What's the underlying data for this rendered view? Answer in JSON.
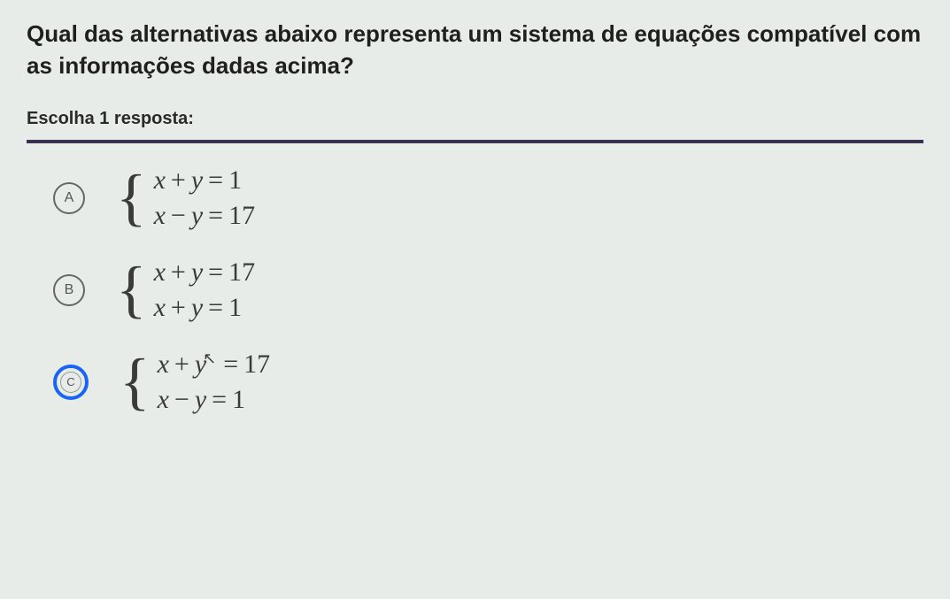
{
  "question_text": "Qual das alternativas abaixo representa um sistema de equações compatível com as informações dadas acima?",
  "instruction_text": "Escolha 1 resposta:",
  "options": [
    {
      "label": "A",
      "selected": false,
      "eq1_lhs_var1": "x",
      "eq1_op": "+",
      "eq1_lhs_var2": "y",
      "eq1_rhs": "1",
      "eq2_lhs_var1": "x",
      "eq2_op": "−",
      "eq2_lhs_var2": "y",
      "eq2_rhs": "17"
    },
    {
      "label": "B",
      "selected": false,
      "eq1_lhs_var1": "x",
      "eq1_op": "+",
      "eq1_lhs_var2": "y",
      "eq1_rhs": "17",
      "eq2_lhs_var1": "x",
      "eq2_op": "+",
      "eq2_lhs_var2": "y",
      "eq2_rhs": "1"
    },
    {
      "label": "C",
      "selected": true,
      "eq1_lhs_var1": "x",
      "eq1_op": "+",
      "eq1_lhs_var2": "y",
      "eq1_rhs": "17",
      "eq2_lhs_var1": "x",
      "eq2_op": "−",
      "eq2_lhs_var2": "y",
      "eq2_rhs": "1",
      "has_cursor": true
    }
  ],
  "colors": {
    "background": "#e8ece9",
    "text_primary": "#1f1f1f",
    "text_secondary": "#2a2a2a",
    "divider": "#3a2f50",
    "radio_border": "#666",
    "radio_selected": "#1865f2",
    "equation_text": "#3a3a3a"
  },
  "typography": {
    "question_fontsize": 26,
    "instruction_fontsize": 20,
    "equation_fontsize": 30,
    "brace_fontsize": 72,
    "radio_label_fontsize": 16
  },
  "cursor_glyph": "↖"
}
